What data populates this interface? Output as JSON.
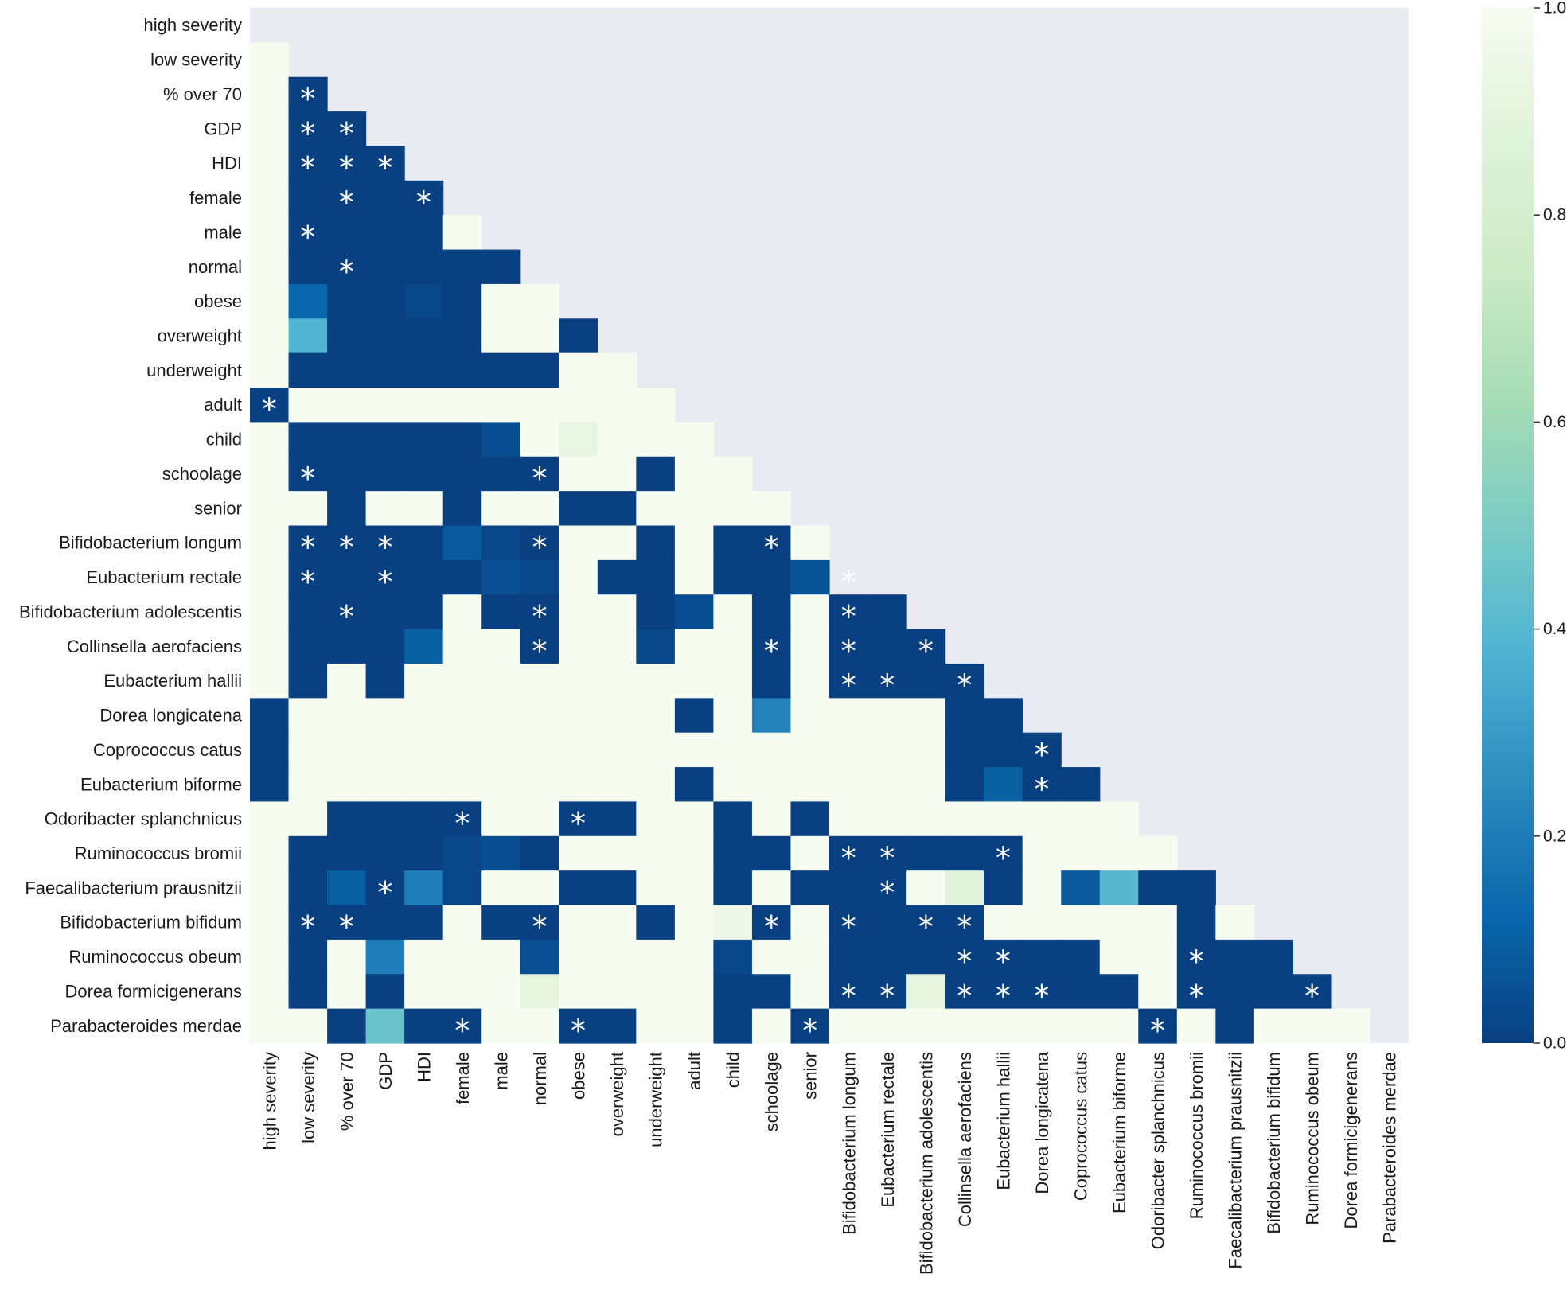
{
  "chart_data": {
    "type": "heatmap",
    "variables": [
      "high severity",
      "low severity",
      "% over 70",
      "GDP",
      "HDI",
      "female",
      "male",
      "normal",
      "obese",
      "overweight",
      "underweight",
      "adult",
      "child",
      "schoolage",
      "senior",
      "Bifidobacterium longum",
      "Eubacterium rectale",
      "Bifidobacterium adolescentis",
      "Collinsella aerofaciens",
      "Eubacterium hallii",
      "Dorea longicatena",
      "Coprococcus catus",
      "Eubacterium biforme",
      "Odoribacter splanchnicus",
      "Ruminococcus bromii",
      "Faecalibacterium prausnitzii",
      "Bifidobacterium bifidum",
      "Ruminococcus obeum",
      "Dorea formicigenerans",
      "Parabacteroides merdae"
    ],
    "mask": "upper triangle including diagonal",
    "colormap": "GnBu (reversed: 0 = dark blue, 1 = near white)",
    "vmin": 0.0,
    "vmax": 1.0,
    "colorbar_ticks": [
      "0.0",
      "0.2",
      "0.4",
      "0.6",
      "0.8",
      "1.0"
    ],
    "values": [
      [],
      [
        1
      ],
      [
        1,
        0
      ],
      [
        1,
        0,
        0
      ],
      [
        1,
        0,
        0,
        0
      ],
      [
        1,
        0,
        0,
        0,
        0
      ],
      [
        1,
        0,
        0,
        0,
        0,
        1
      ],
      [
        1,
        0,
        0,
        0,
        0,
        0,
        0
      ],
      [
        1,
        0.12,
        0,
        0,
        0.02,
        0,
        1,
        1
      ],
      [
        1,
        0.38,
        0,
        0,
        0,
        0,
        1,
        1,
        0
      ],
      [
        1,
        0,
        0,
        0,
        0,
        0,
        0,
        0,
        1,
        1
      ],
      [
        0,
        1,
        1,
        1,
        1,
        1,
        1,
        1,
        1,
        1,
        1
      ],
      [
        1,
        0,
        0,
        0,
        0,
        0,
        0.04,
        1,
        0.92,
        1,
        1,
        1
      ],
      [
        1,
        0,
        0,
        0,
        0,
        0,
        0,
        0,
        1,
        1,
        0,
        1,
        1
      ],
      [
        1,
        1,
        0,
        1,
        1,
        0,
        1,
        1,
        0,
        0,
        1,
        1,
        1,
        1
      ],
      [
        1,
        0,
        0,
        0,
        0,
        0.08,
        0.02,
        0,
        1,
        1,
        0,
        1,
        0,
        0,
        1
      ],
      [
        1,
        0,
        0,
        0,
        0,
        0,
        0.05,
        0.02,
        1,
        0,
        0,
        1,
        0,
        0,
        0.06
      ],
      [
        1,
        0,
        0,
        0,
        0,
        1,
        0,
        0,
        1,
        1,
        0,
        0.04,
        1,
        0,
        1,
        0,
        0
      ],
      [
        1,
        0,
        0,
        0,
        0.1,
        1,
        1,
        0,
        1,
        1,
        0.02,
        1,
        1,
        0,
        1,
        0,
        0,
        0
      ],
      [
        1,
        0,
        1,
        0,
        1,
        1,
        1,
        1,
        1,
        1,
        1,
        1,
        1,
        0,
        1,
        0,
        0,
        0,
        0
      ],
      [
        0,
        1,
        1,
        1,
        1,
        1,
        1,
        1,
        1,
        1,
        1,
        0,
        1,
        0.22,
        1,
        1,
        1,
        1,
        0,
        0
      ],
      [
        0,
        1,
        1,
        1,
        1,
        1,
        1,
        1,
        1,
        1,
        1,
        1,
        1,
        1,
        1,
        1,
        1,
        1,
        0,
        0,
        0
      ],
      [
        0,
        1,
        1,
        1,
        1,
        1,
        1,
        1,
        1,
        1,
        1,
        0,
        1,
        1,
        1,
        1,
        1,
        1,
        0,
        0.1,
        0,
        0
      ],
      [
        1,
        1,
        0,
        0,
        0,
        0,
        1,
        1,
        0,
        0,
        1,
        1,
        0,
        1,
        0,
        1,
        1,
        1,
        1,
        1,
        1,
        1,
        1
      ],
      [
        1,
        0,
        0,
        0,
        0,
        0.02,
        0.04,
        0,
        1,
        1,
        1,
        1,
        0,
        0,
        1,
        0,
        0,
        0,
        0,
        0,
        1,
        1,
        1,
        1
      ],
      [
        1,
        0,
        0.1,
        0,
        0.2,
        0.02,
        1,
        1,
        0,
        0,
        1,
        1,
        0,
        1,
        0,
        0,
        0,
        1,
        0.88,
        0,
        1,
        0.08,
        0.4,
        0,
        0
      ],
      [
        1,
        0,
        0,
        0,
        0,
        1,
        0,
        0,
        1,
        1,
        0,
        1,
        0.95,
        0,
        1,
        0,
        0,
        0,
        0,
        1,
        1,
        1,
        1,
        1,
        0,
        1
      ],
      [
        1,
        0,
        1,
        0.2,
        1,
        1,
        1,
        0.05,
        1,
        1,
        1,
        1,
        0.02,
        1,
        1,
        0,
        0,
        0,
        0,
        0,
        0,
        0,
        1,
        1,
        0,
        0,
        0
      ],
      [
        1,
        0,
        1,
        0,
        1,
        1,
        1,
        0.9,
        1,
        1,
        1,
        1,
        0,
        0,
        1,
        0,
        0,
        0.9,
        0,
        0,
        0,
        0,
        0,
        1,
        0,
        0,
        0,
        0
      ],
      [
        1,
        1,
        0,
        0.45,
        0,
        0,
        1,
        1,
        0,
        0,
        1,
        1,
        0,
        1,
        0,
        1,
        1,
        1,
        1,
        1,
        1,
        1,
        1,
        0,
        1,
        0,
        1,
        1,
        1
      ]
    ],
    "significant": [
      [
        2,
        1
      ],
      [
        3,
        1
      ],
      [
        3,
        2
      ],
      [
        4,
        1
      ],
      [
        4,
        2
      ],
      [
        4,
        3
      ],
      [
        5,
        2
      ],
      [
        5,
        4
      ],
      [
        6,
        1
      ],
      [
        7,
        2
      ],
      [
        11,
        0
      ],
      [
        13,
        1
      ],
      [
        13,
        7
      ],
      [
        15,
        1
      ],
      [
        15,
        2
      ],
      [
        15,
        3
      ],
      [
        15,
        7
      ],
      [
        15,
        13
      ],
      [
        16,
        1
      ],
      [
        16,
        3
      ],
      [
        16,
        15
      ],
      [
        17,
        2
      ],
      [
        17,
        7
      ],
      [
        17,
        15
      ],
      [
        18,
        7
      ],
      [
        18,
        13
      ],
      [
        18,
        15
      ],
      [
        18,
        17
      ],
      [
        19,
        15
      ],
      [
        19,
        16
      ],
      [
        19,
        18
      ],
      [
        21,
        20
      ],
      [
        22,
        20
      ],
      [
        23,
        5
      ],
      [
        23,
        8
      ],
      [
        24,
        15
      ],
      [
        24,
        16
      ],
      [
        24,
        19
      ],
      [
        25,
        3
      ],
      [
        25,
        16
      ],
      [
        26,
        1
      ],
      [
        26,
        2
      ],
      [
        26,
        7
      ],
      [
        26,
        13
      ],
      [
        26,
        15
      ],
      [
        26,
        17
      ],
      [
        26,
        18
      ],
      [
        27,
        18
      ],
      [
        27,
        19
      ],
      [
        27,
        24
      ],
      [
        28,
        15
      ],
      [
        28,
        16
      ],
      [
        28,
        18
      ],
      [
        28,
        19
      ],
      [
        28,
        20
      ],
      [
        28,
        24
      ],
      [
        28,
        27
      ],
      [
        29,
        5
      ],
      [
        29,
        8
      ],
      [
        29,
        14
      ],
      [
        29,
        23
      ]
    ]
  }
}
